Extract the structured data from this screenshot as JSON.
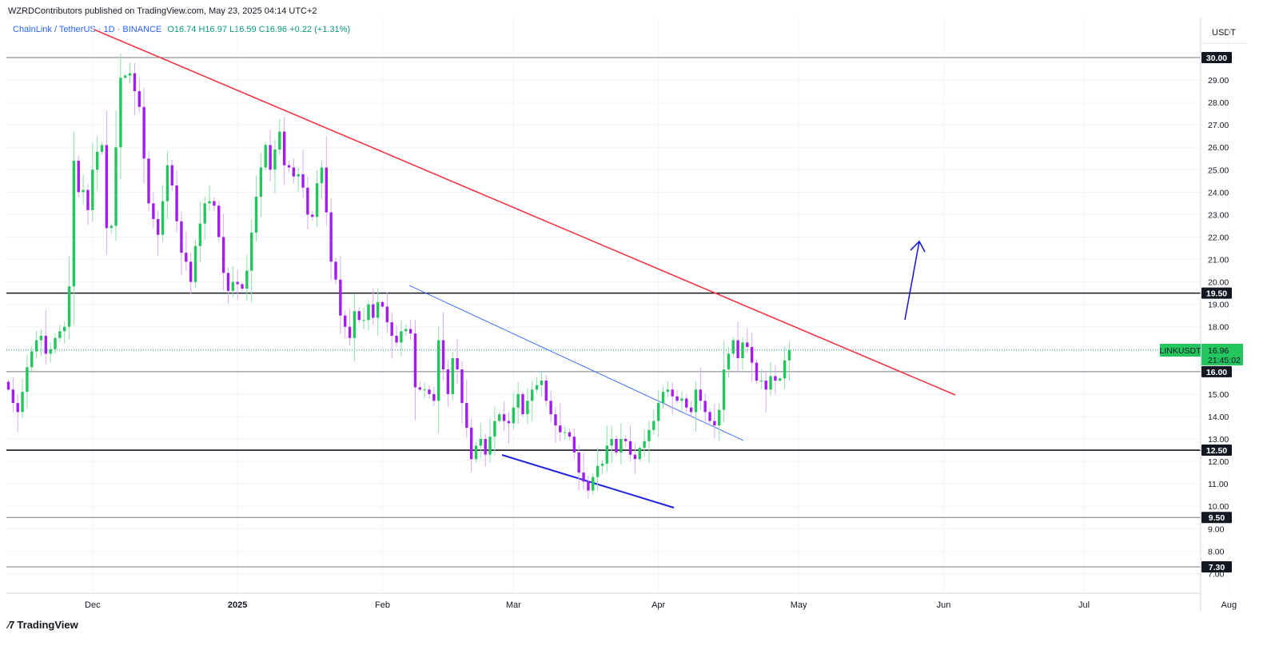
{
  "header": {
    "published": "WZRDContributors published on TradingView.com, May 23, 2025 04:14 UTC+2",
    "symbol": "ChainLink / TetherUS · 1D · BINANCE",
    "ohlc": "O16.74  H16.97  L16.59  C16.96  +0.22 (+1.31%)"
  },
  "price_axis": {
    "currency": "USDT",
    "ticks": [
      7.0,
      8.0,
      9.0,
      10.0,
      11.0,
      12.0,
      13.0,
      14.0,
      15.0,
      16.0,
      17.0,
      18.0,
      19.0,
      20.0,
      21.0,
      22.0,
      23.0,
      24.0,
      25.0,
      26.0,
      27.0,
      28.0,
      29.0
    ]
  },
  "levels": [
    {
      "price": 30.0,
      "label": "30.00"
    },
    {
      "price": 19.5,
      "label": "19.50"
    },
    {
      "price": 16.0,
      "label": "16.00"
    },
    {
      "price": 12.5,
      "label": "12.50"
    },
    {
      "price": 9.5,
      "label": "9.50"
    },
    {
      "price": 7.3,
      "label": "7.30"
    }
  ],
  "current": {
    "symbol": "LINKUSDT",
    "price": "16.96",
    "countdown": "21:45:02",
    "value": 16.96
  },
  "footer": {
    "brand": "TradingView"
  },
  "colors": {
    "up": "#22c55e",
    "down": "#a21cf0",
    "trendline": "#f23645",
    "channel": "#2962ff",
    "level": "#131722"
  },
  "chart_data": {
    "type": "candlestick",
    "title": "",
    "x_axis_labels": [
      {
        "label": "Dec",
        "date": "2024-12-01"
      },
      {
        "label": "2025",
        "date": "2025-01-01"
      },
      {
        "label": "Feb",
        "date": "2025-02-01"
      },
      {
        "label": "Mar",
        "date": "2025-03-01"
      },
      {
        "label": "Apr",
        "date": "2025-04-01"
      },
      {
        "label": "May",
        "date": "2025-05-01"
      },
      {
        "label": "Jun",
        "date": "2025-06-01"
      },
      {
        "label": "Jul",
        "date": "2025-07-01"
      },
      {
        "label": "Aug",
        "date": "2025-08-01"
      }
    ],
    "y_range": [
      6.5,
      31.0
    ],
    "first_candle_date": "2024-11-13",
    "closes": [
      15.2,
      14.6,
      14.2,
      15.1,
      16.2,
      16.9,
      17.4,
      17.6,
      16.8,
      17.0,
      17.5,
      17.8,
      18.0,
      19.8,
      25.4,
      24.0,
      24.1,
      23.2,
      25.0,
      25.8,
      26.1,
      22.4,
      22.5,
      26.0,
      29.1,
      29.2,
      29.3,
      28.5,
      27.8,
      25.5,
      23.5,
      22.8,
      22.1,
      23.6,
      25.2,
      24.3,
      22.7,
      21.3,
      20.9,
      20.0,
      21.6,
      22.6,
      23.5,
      23.6,
      23.4,
      22.0,
      20.4,
      19.6,
      20.0,
      19.9,
      19.7,
      20.5,
      22.2,
      23.8,
      25.1,
      26.1,
      25.0,
      25.9,
      26.7,
      25.2,
      25.1,
      24.7,
      24.8,
      24.2,
      23.0,
      22.9,
      24.4,
      25.1,
      23.1,
      20.9,
      20.1,
      18.5,
      18.0,
      17.5,
      18.7,
      18.3,
      18.3,
      19.0,
      18.4,
      19.1,
      18.9,
      18.2,
      17.6,
      17.3,
      17.8,
      17.9,
      17.7,
      15.3,
      15.2,
      15.2,
      15.0,
      14.7,
      17.4,
      16.1,
      15.0,
      16.6,
      16.1,
      14.6,
      13.5,
      12.1,
      12.7,
      13.0,
      12.3,
      13.1,
      13.8,
      14.1,
      13.8,
      13.7,
      14.4,
      15.0,
      14.1,
      14.7,
      15.2,
      15.4,
      15.6,
      14.7,
      14.1,
      13.6,
      13.3,
      13.3,
      13.1,
      12.4,
      11.5,
      11.1,
      10.7,
      11.3,
      11.8,
      11.9,
      12.7,
      13.0,
      12.4,
      13.0,
      12.9,
      12.3,
      12.1,
      12.6,
      12.9,
      13.4,
      13.8,
      14.6,
      15.1,
      15.2,
      14.9,
      14.7,
      14.8,
      14.4,
      14.2,
      15.2,
      14.7,
      14.2,
      13.8,
      13.6,
      14.3,
      16.1,
      16.8,
      17.4,
      16.6,
      17.3,
      17.1,
      16.4,
      15.6,
      15.6,
      15.2,
      15.8,
      15.6,
      15.7,
      16.5,
      16.96
    ]
  }
}
